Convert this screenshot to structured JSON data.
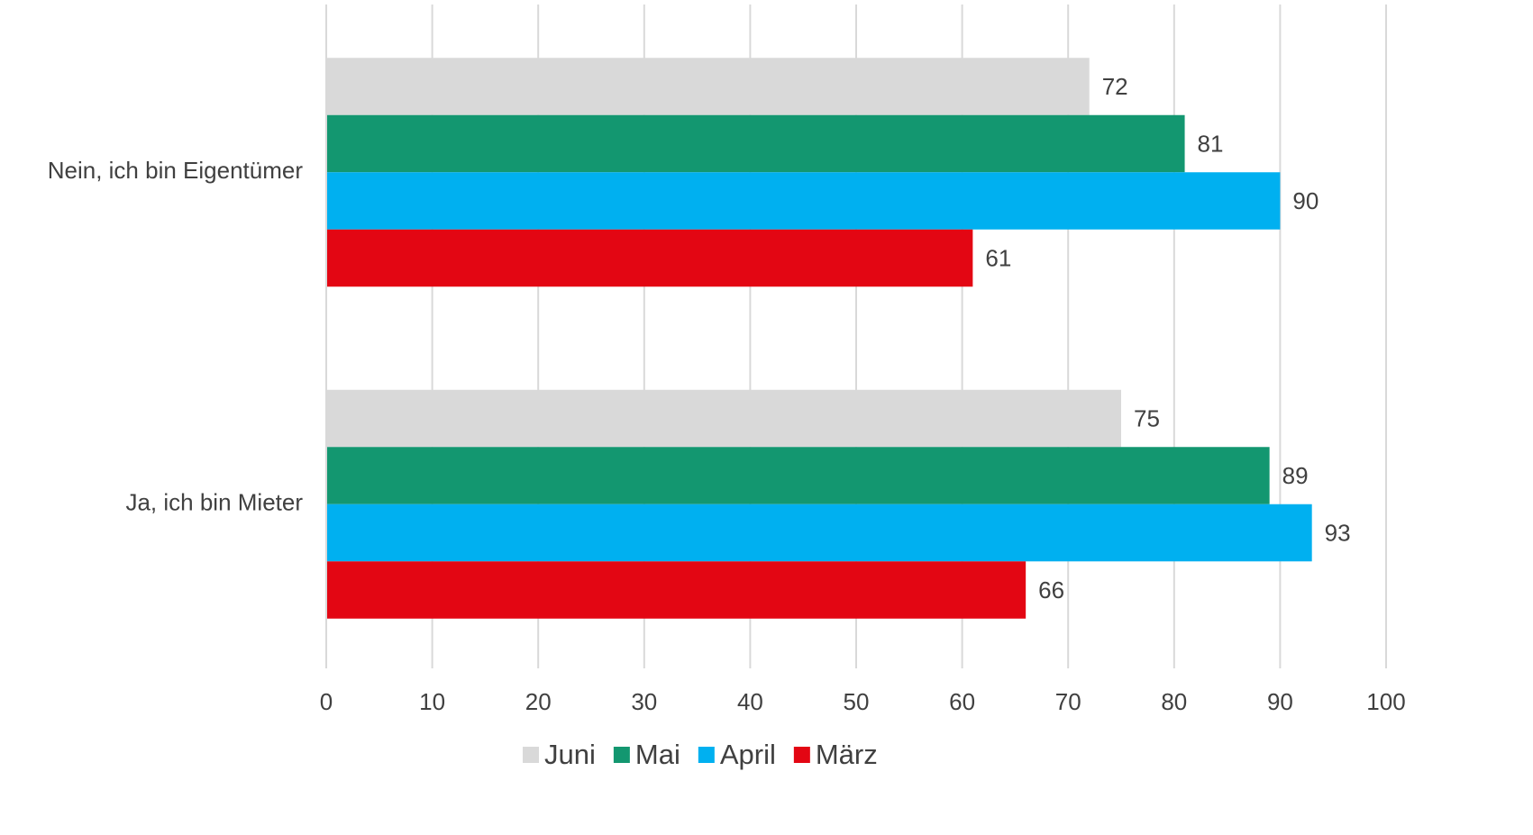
{
  "chart_data": {
    "type": "bar",
    "orientation": "horizontal",
    "categories": [
      "Nein, ich bin Eigentümer",
      "Ja, ich bin Mieter"
    ],
    "series": [
      {
        "name": "Juni",
        "color": "#d9d9d9",
        "values": [
          72,
          75
        ]
      },
      {
        "name": "Mai",
        "color": "#139770",
        "values": [
          81,
          89
        ]
      },
      {
        "name": "April",
        "color": "#00b0f0",
        "values": [
          90,
          93
        ]
      },
      {
        "name": "März",
        "color": "#e30613",
        "values": [
          61,
          66
        ]
      }
    ],
    "xlim": [
      0,
      100
    ],
    "xticks": [
      0,
      10,
      20,
      30,
      40,
      50,
      60,
      70,
      80,
      90,
      100
    ],
    "grid": true,
    "legend": "bottom"
  }
}
